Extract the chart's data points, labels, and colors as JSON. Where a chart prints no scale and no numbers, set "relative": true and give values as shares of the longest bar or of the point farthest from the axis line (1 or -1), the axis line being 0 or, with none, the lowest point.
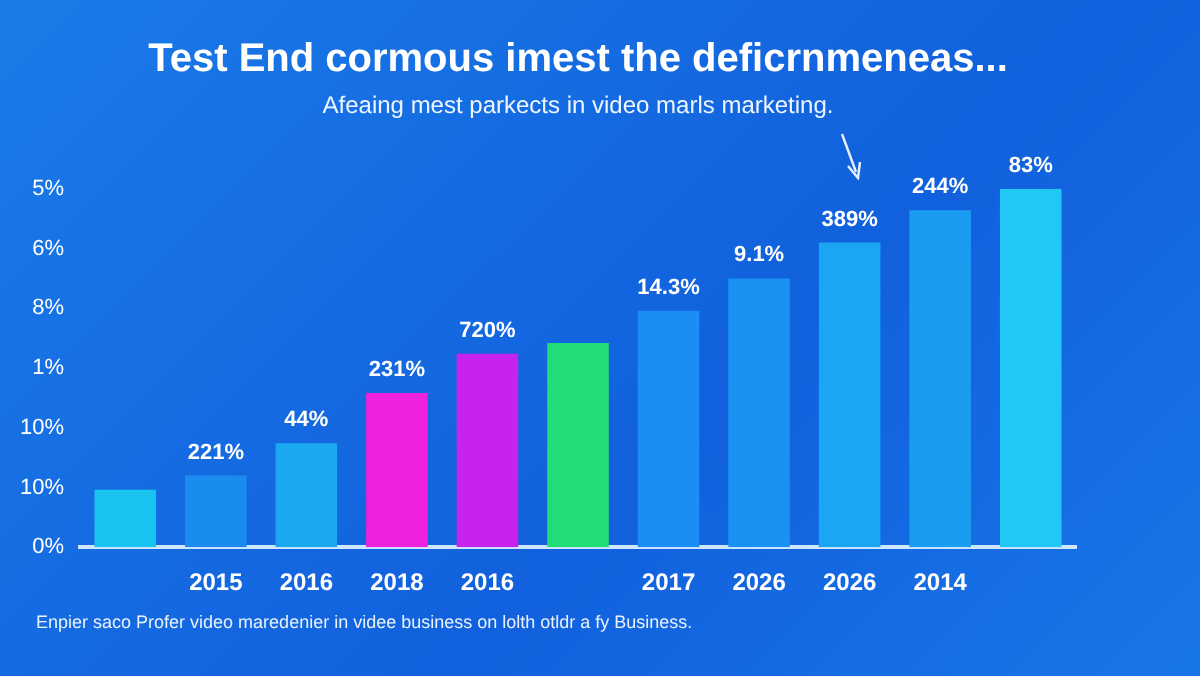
{
  "chart_data": {
    "type": "bar",
    "title": "Test End cormous imest the deficrnmeneas...",
    "subtitle": "Afeaing mest parkects in video marls marketing.",
    "categories": [
      null,
      "2015",
      "2016",
      "2018",
      "2016",
      null,
      "2017",
      "2026",
      "2026",
      "2014",
      null
    ],
    "values": [
      0.16,
      0.2,
      0.29,
      0.43,
      0.54,
      0.57,
      0.66,
      0.75,
      0.85,
      0.94,
      1
    ],
    "colors": [
      "#19c3f0",
      "#1a8cf0",
      "#1aa8f0",
      "#ee22dd",
      "#c722ee",
      "#22dd77",
      "#1a8ef2",
      "#1a92f2",
      "#1aa6f2",
      "#1a9cf0",
      "#22c8f5"
    ],
    "relative": true,
    "annotations": [
      "Enpier saco Profer video maredenier in videe business on lolth otldr a fy Business.",
      "5%",
      "6%",
      "8%",
      "1%",
      "10%",
      "10%",
      "0%",
      {
        "text": "221%",
        "x": "2015",
        "y": 0.2
      },
      {
        "text": "44%",
        "x": "2016",
        "y": 0.29
      },
      {
        "text": "231%",
        "x": "2018",
        "y": 0.43
      },
      {
        "text": "720%",
        "y": 0.54
      },
      {
        "text": "14.3%",
        "x": "2017",
        "y": 0.66
      },
      {
        "text": "9.1%",
        "x": "2026",
        "y": 0.75
      },
      {
        "text": "389%",
        "y": 0.85
      },
      {
        "text": "244%",
        "x": "2014",
        "y": 0.94
      },
      {
        "text": "83%",
        "y": 1
      }
    ]
  }
}
